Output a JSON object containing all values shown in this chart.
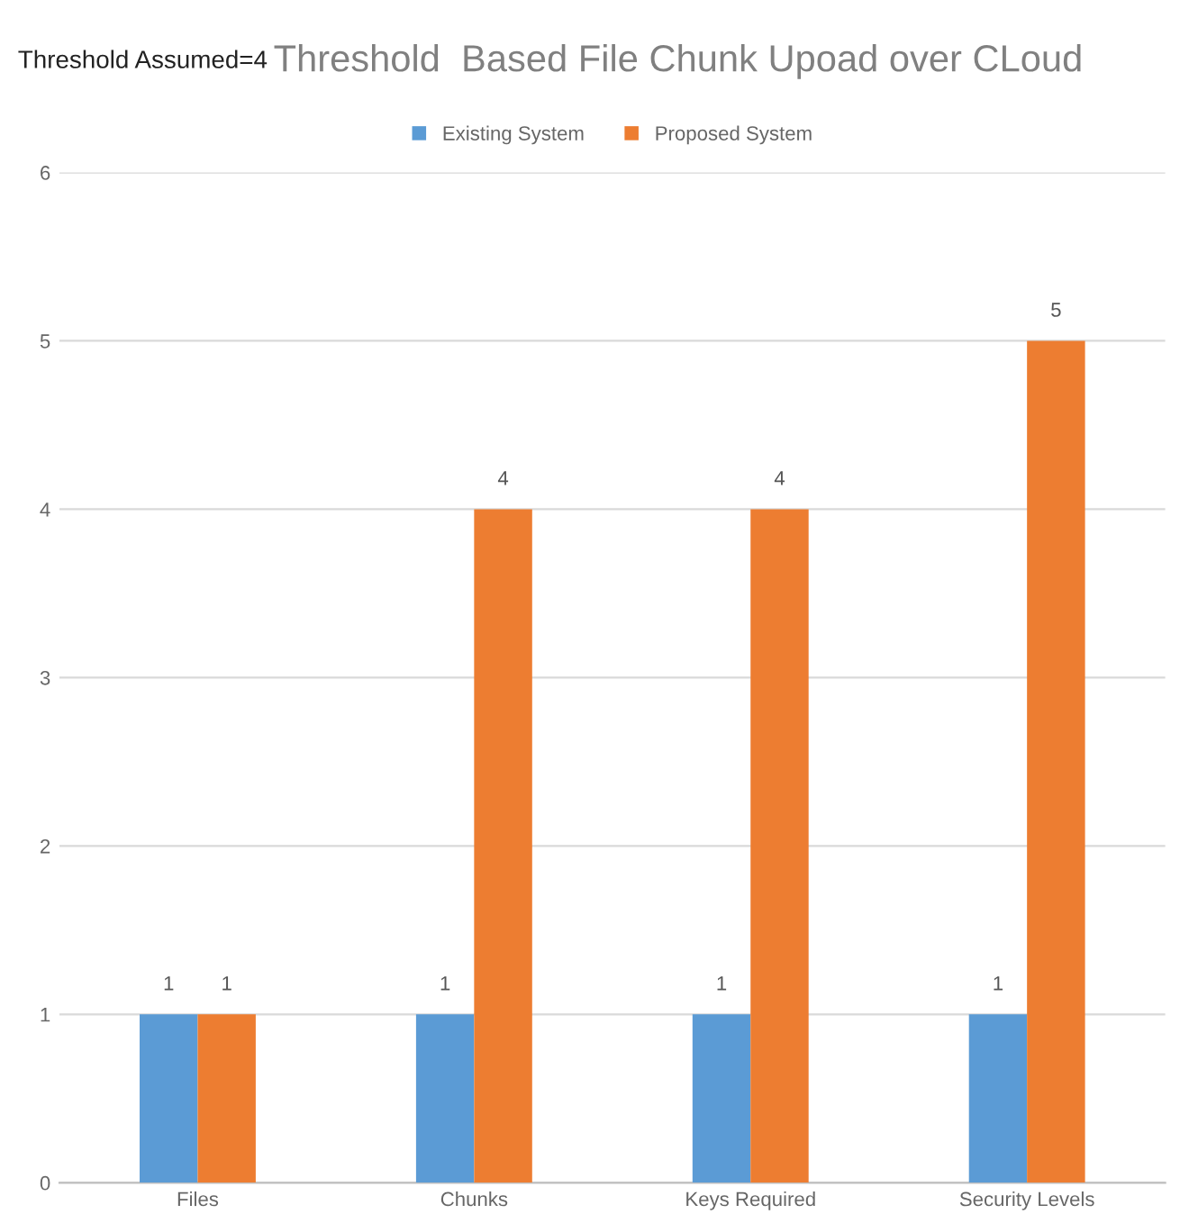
{
  "chart_data": {
    "type": "bar",
    "title": "Threshold  Based File Chunk Upoad over CLoud",
    "annotations": [
      "Threshold Assumed=4"
    ],
    "categories": [
      "Files",
      "Chunks",
      "Keys Required",
      "Security Levels"
    ],
    "series": [
      {
        "name": "Existing System",
        "color": "#5b9bd5",
        "values": [
          1,
          1,
          1,
          1
        ]
      },
      {
        "name": "Proposed System",
        "color": "#ed7d31",
        "values": [
          1,
          4,
          4,
          5
        ]
      }
    ],
    "ylim": [
      0,
      6
    ],
    "yticks": [
      0,
      1,
      2,
      3,
      4,
      5,
      6
    ],
    "grid": "y",
    "legend": "top",
    "data_labels": true
  }
}
